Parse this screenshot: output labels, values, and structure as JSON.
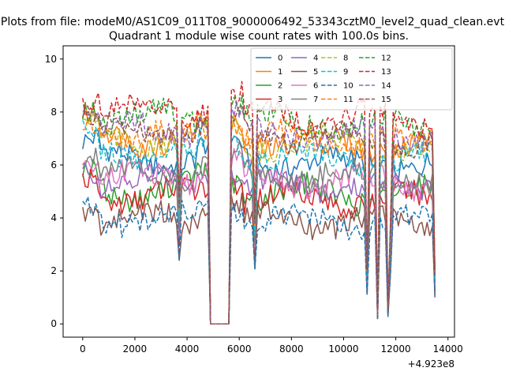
{
  "header": {
    "file_title": "Plots from file: modeM0/AS1C09_011T08_9000006492_53343cztM0_level2_quad_clean.evt"
  },
  "chart_data": {
    "type": "line",
    "title": "Quadrant 1 module wise count rates with 100.0s bins.",
    "xlabel": "",
    "ylabel": "",
    "x_offset_label": "+4.923e8",
    "xlim": [
      -750,
      14250
    ],
    "ylim": [
      -0.5,
      10.5
    ],
    "x_ticks": [
      0,
      2000,
      4000,
      6000,
      8000,
      10000,
      12000,
      14000
    ],
    "x_tick_labels": [
      "0",
      "2000",
      "4000",
      "6000",
      "8000",
      "10000",
      "12000",
      "14000"
    ],
    "y_ticks": [
      0,
      2,
      4,
      6,
      8,
      10
    ],
    "y_tick_labels": [
      "0",
      "2",
      "4",
      "6",
      "8",
      "10"
    ],
    "grid": false,
    "legend_position": "top-right",
    "legend_columns": 4,
    "bin_seconds": 100,
    "segments": [
      {
        "start": 0,
        "end": 3600
      },
      {
        "start": 3700,
        "end": 4800
      },
      {
        "start": 5700,
        "end": 10800
      },
      {
        "start": 10900,
        "end": 11300
      },
      {
        "start": 11400,
        "end": 11700
      },
      {
        "start": 11800,
        "end": 13500
      }
    ],
    "dips": [
      {
        "x": 3700,
        "factor": 0.6
      },
      {
        "x": 6600,
        "factor": 0.52
      },
      {
        "x": 10900,
        "factor": 0.28
      },
      {
        "x": 11300,
        "factor": 0.05
      },
      {
        "x": 11700,
        "factor": 0.07
      },
      {
        "x": 11800,
        "factor": 0.5
      },
      {
        "x": 13500,
        "factor": 0.25
      }
    ],
    "gap": {
      "start": 4900,
      "end": 5600,
      "value": 0
    },
    "series": [
      {
        "name": "0",
        "color": "#1f77b4",
        "dash": "solid",
        "mean": 6.3,
        "amp": 0.3,
        "phase": 0.3
      },
      {
        "name": "1",
        "color": "#ff7f0e",
        "dash": "solid",
        "mean": 7.1,
        "amp": 0.35,
        "phase": 1.1
      },
      {
        "name": "2",
        "color": "#2ca02c",
        "dash": "solid",
        "mean": 5.1,
        "amp": 0.4,
        "phase": 2.0
      },
      {
        "name": "3",
        "color": "#d62728",
        "dash": "solid",
        "mean": 4.9,
        "amp": 0.35,
        "phase": 2.7
      },
      {
        "name": "4",
        "color": "#9467bd",
        "dash": "solid",
        "mean": 5.4,
        "amp": 0.3,
        "phase": 3.5
      },
      {
        "name": "5",
        "color": "#8c564b",
        "dash": "solid",
        "mean": 4.0,
        "amp": 0.35,
        "phase": 4.2
      },
      {
        "name": "6",
        "color": "#e377c2",
        "dash": "solid",
        "mean": 5.6,
        "amp": 0.3,
        "phase": 5.0
      },
      {
        "name": "7",
        "color": "#7f7f7f",
        "dash": "solid",
        "mean": 5.8,
        "amp": 0.3,
        "phase": 5.7
      },
      {
        "name": "8",
        "color": "#bcbd22",
        "dash": "dashed",
        "mean": 7.0,
        "amp": 0.3,
        "phase": 0.8
      },
      {
        "name": "9",
        "color": "#17becf",
        "dash": "dashed",
        "mean": 6.5,
        "amp": 0.3,
        "phase": 1.6
      },
      {
        "name": "10",
        "color": "#1f77b4",
        "dash": "dashed",
        "mean": 4.0,
        "amp": 0.3,
        "phase": 2.4
      },
      {
        "name": "11",
        "color": "#ff7f0e",
        "dash": "dashed",
        "mean": 7.2,
        "amp": 0.3,
        "phase": 3.1
      },
      {
        "name": "12",
        "color": "#2ca02c",
        "dash": "dashed",
        "mean": 7.9,
        "amp": 0.35,
        "phase": 3.9
      },
      {
        "name": "13",
        "color": "#d62728",
        "dash": "dashed",
        "mean": 8.1,
        "amp": 0.4,
        "phase": 4.6
      },
      {
        "name": "14",
        "color": "#9467bd",
        "dash": "dashed",
        "mean": 7.4,
        "amp": 0.3,
        "phase": 5.3
      },
      {
        "name": "15",
        "color": "#8c564b",
        "dash": "dashed",
        "mean": 7.3,
        "amp": 0.3,
        "phase": 6.0
      }
    ]
  }
}
